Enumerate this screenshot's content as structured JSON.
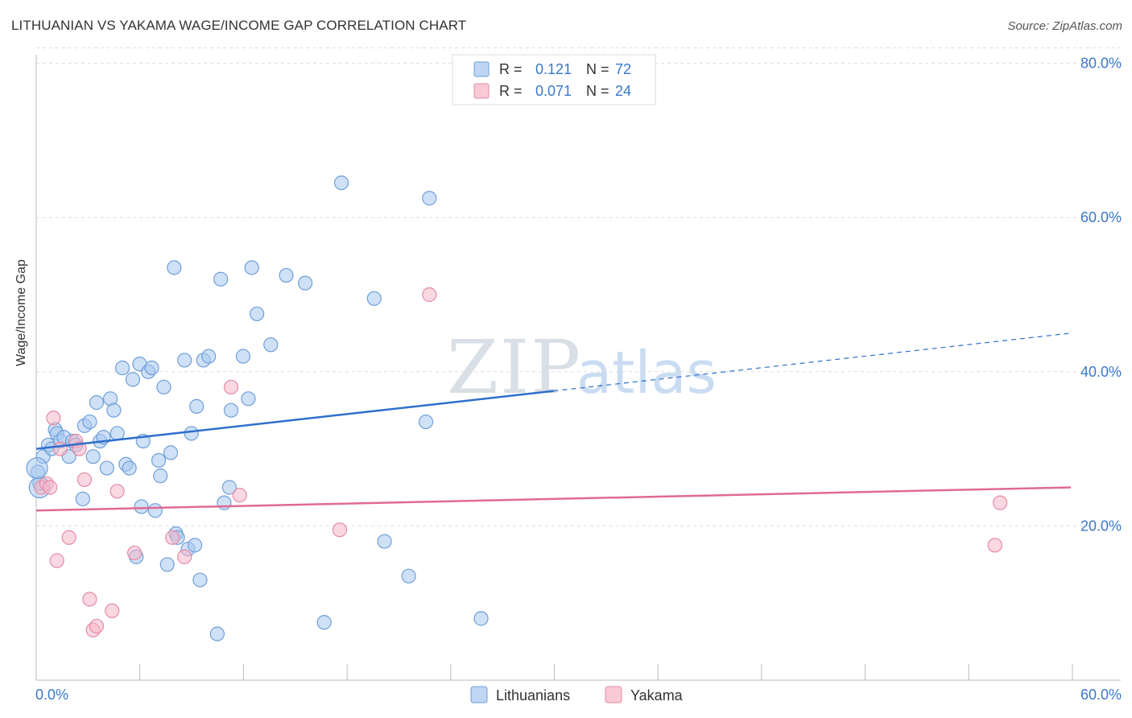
{
  "header": {
    "title": "LITHUANIAN VS YAKAMA WAGE/INCOME GAP CORRELATION CHART",
    "source": "Source: ZipAtlas.com"
  },
  "watermark": {
    "zip": "ZIP",
    "atlas": "atlas"
  },
  "legend_top": [
    {
      "r_label": "R =",
      "r_value": "0.121",
      "n_label": "N =",
      "n_value": "72",
      "color": "#a8c8f0"
    },
    {
      "r_label": "R =",
      "r_value": "0.071",
      "n_label": "N =",
      "n_value": "24",
      "color": "#f5b8c8"
    }
  ],
  "colors": {
    "blue_fill": "#a8c8f0",
    "blue_stroke": "#6f9fd8",
    "blue_line": "#2f6fcc",
    "pink_fill": "#f5b8c8",
    "pink_stroke": "#e58aa6",
    "pink_line": "#e06a93",
    "axis_text": "#3a78c8",
    "grid": "#dddddd"
  },
  "chart_data": {
    "type": "scatter",
    "title": "LITHUANIAN VS YAKAMA WAGE/INCOME GAP CORRELATION CHART",
    "xlabel": "",
    "ylabel": "Wage/Income Gap",
    "xlim": [
      0,
      60
    ],
    "ylim": [
      0,
      82
    ],
    "x_tick_labels": [
      "0.0%",
      "60.0%"
    ],
    "y_ticks": [
      20,
      40,
      60,
      80
    ],
    "y_tick_labels": [
      "20.0%",
      "40.0%",
      "60.0%",
      "80.0%"
    ],
    "grid": true,
    "legend": "bottom-center",
    "series": [
      {
        "name": "Lithuanians",
        "points": [
          [
            0.1,
            27.0
          ],
          [
            0.2,
            25.5
          ],
          [
            0.4,
            29.0
          ],
          [
            0.7,
            30.5
          ],
          [
            0.9,
            30.0
          ],
          [
            1.1,
            32.5
          ],
          [
            1.2,
            32.0
          ],
          [
            1.4,
            31.0
          ],
          [
            1.6,
            31.5
          ],
          [
            1.9,
            29.0
          ],
          [
            2.1,
            31.0
          ],
          [
            2.3,
            30.5
          ],
          [
            2.7,
            23.5
          ],
          [
            2.8,
            33.0
          ],
          [
            3.1,
            33.5
          ],
          [
            3.3,
            29.0
          ],
          [
            3.5,
            36.0
          ],
          [
            3.7,
            31.0
          ],
          [
            3.9,
            31.5
          ],
          [
            4.1,
            27.5
          ],
          [
            4.3,
            36.5
          ],
          [
            4.5,
            35.0
          ],
          [
            4.7,
            32.0
          ],
          [
            5.0,
            40.5
          ],
          [
            5.2,
            28.0
          ],
          [
            5.4,
            27.5
          ],
          [
            5.6,
            39.0
          ],
          [
            5.8,
            16.0
          ],
          [
            6.0,
            41.0
          ],
          [
            6.1,
            22.5
          ],
          [
            6.2,
            31.0
          ],
          [
            6.5,
            40.0
          ],
          [
            6.7,
            40.5
          ],
          [
            6.9,
            22.0
          ],
          [
            7.1,
            28.5
          ],
          [
            7.2,
            26.5
          ],
          [
            7.4,
            38.0
          ],
          [
            7.6,
            15.0
          ],
          [
            7.8,
            29.5
          ],
          [
            8.0,
            53.5
          ],
          [
            8.1,
            19.0
          ],
          [
            8.2,
            18.5
          ],
          [
            8.6,
            41.5
          ],
          [
            8.8,
            17.0
          ],
          [
            9.0,
            32.0
          ],
          [
            9.2,
            17.5
          ],
          [
            9.3,
            35.5
          ],
          [
            9.5,
            13.0
          ],
          [
            9.7,
            41.5
          ],
          [
            10.0,
            42.0
          ],
          [
            10.5,
            6.0
          ],
          [
            10.7,
            52.0
          ],
          [
            10.9,
            23.0
          ],
          [
            11.2,
            25.0
          ],
          [
            11.3,
            35.0
          ],
          [
            12.0,
            42.0
          ],
          [
            12.3,
            36.5
          ],
          [
            12.5,
            53.5
          ],
          [
            12.8,
            47.5
          ],
          [
            13.6,
            43.5
          ],
          [
            14.5,
            52.5
          ],
          [
            15.6,
            51.5
          ],
          [
            16.7,
            7.5
          ],
          [
            17.7,
            64.5
          ],
          [
            19.6,
            49.5
          ],
          [
            20.2,
            18.0
          ],
          [
            21.6,
            13.5
          ],
          [
            22.6,
            33.5
          ],
          [
            22.8,
            62.5
          ],
          [
            25.8,
            8.0
          ],
          [
            0.2,
            25.0
          ],
          [
            0.05,
            27.5
          ]
        ],
        "trend": {
          "x_start": 0,
          "y_start": 30.0,
          "x_end": 60,
          "y_end": 45.0,
          "solid_until_x": 30
        }
      },
      {
        "name": "Yakama",
        "points": [
          [
            0.3,
            25.0
          ],
          [
            0.6,
            25.5
          ],
          [
            1.0,
            34.0
          ],
          [
            1.2,
            15.5
          ],
          [
            1.4,
            30.0
          ],
          [
            1.9,
            18.5
          ],
          [
            2.3,
            31.0
          ],
          [
            2.5,
            30.0
          ],
          [
            2.8,
            26.0
          ],
          [
            3.1,
            10.5
          ],
          [
            3.3,
            6.5
          ],
          [
            3.5,
            7.0
          ],
          [
            4.4,
            9.0
          ],
          [
            4.7,
            24.5
          ],
          [
            5.7,
            16.5
          ],
          [
            7.9,
            18.5
          ],
          [
            8.6,
            16.0
          ],
          [
            11.3,
            38.0
          ],
          [
            11.8,
            24.0
          ],
          [
            17.6,
            19.5
          ],
          [
            22.8,
            50.0
          ],
          [
            55.6,
            17.5
          ],
          [
            55.9,
            23.0
          ],
          [
            0.8,
            25.0
          ]
        ],
        "trend": {
          "x_start": 0,
          "y_start": 22.0,
          "x_end": 60,
          "y_end": 25.0
        }
      }
    ]
  }
}
